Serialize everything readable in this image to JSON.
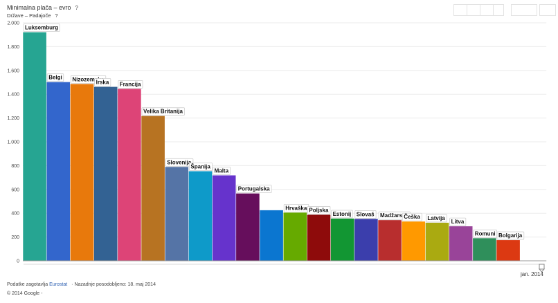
{
  "header": {
    "title": "Minimalna plača – evro",
    "title_help": "?",
    "subtitle": "Države – Padajoče",
    "subtitle_help": "?"
  },
  "footer": {
    "source_prefix": "Podatke zagotavlja",
    "source_link": "Eurostat",
    "updated": "Nazadnje posodobljeno: 18. maj 2014",
    "copyright": "© 2014 Google -"
  },
  "timeline": {
    "label": "jan. 2014"
  },
  "chart_data": {
    "type": "bar",
    "title": "Minimalna plača – evro",
    "xlabel": "",
    "ylabel": "",
    "ylim": [
      0,
      2000
    ],
    "yticks": [
      0,
      200,
      400,
      600,
      800,
      1000,
      1200,
      1400,
      1600,
      1800,
      2000
    ],
    "ytick_labels": [
      "0",
      "200",
      "400",
      "600",
      "800",
      "1.000",
      "1.200",
      "1.400",
      "1.600",
      "1.800",
      "2.000"
    ],
    "grid": true,
    "categories": [
      "Luksemburg",
      "Belgija",
      "Nizozemska",
      "Irska",
      "Francija",
      "Velika Britanija",
      "Slovenija",
      "Španija",
      "Malta",
      "Portugalska",
      "",
      "Hrvaška",
      "Poljska",
      "Estonija",
      "Slovaška",
      "Madžarska",
      "Češka",
      "Latvija",
      "Litva",
      "Romunija",
      "Bolgarija"
    ],
    "labels": [
      "Luksemburg",
      "Belgi",
      "Nizozemska",
      "Irska",
      "Francija",
      "Velika Britanija",
      "Slovenija",
      "Španija",
      "Malta",
      "Portugalska",
      "",
      "Hrvaška",
      "Poljska",
      "Estonij",
      "Slovaš",
      "Madžarska",
      "Češka",
      "Latvija",
      "Litva",
      "Romuni",
      "Bolgarija"
    ],
    "values": [
      1921,
      1502,
      1486,
      1462,
      1445,
      1217,
      789,
      753,
      718,
      566,
      425,
      405,
      387,
      355,
      352,
      342,
      330,
      320,
      290,
      190,
      174
    ],
    "colors": [
      "#26a592",
      "#3366cc",
      "#e8790c",
      "#336293",
      "#dd4477",
      "#b77322",
      "#5574a6",
      "#0e9ac9",
      "#6633cc",
      "#660e5c",
      "#0b76d0",
      "#66aa00",
      "#8e0b0b",
      "#129633",
      "#3b3eac",
      "#b82e2e",
      "#ff9900",
      "#aaaa11",
      "#994499",
      "#2f8f5b",
      "#dc3912"
    ]
  }
}
